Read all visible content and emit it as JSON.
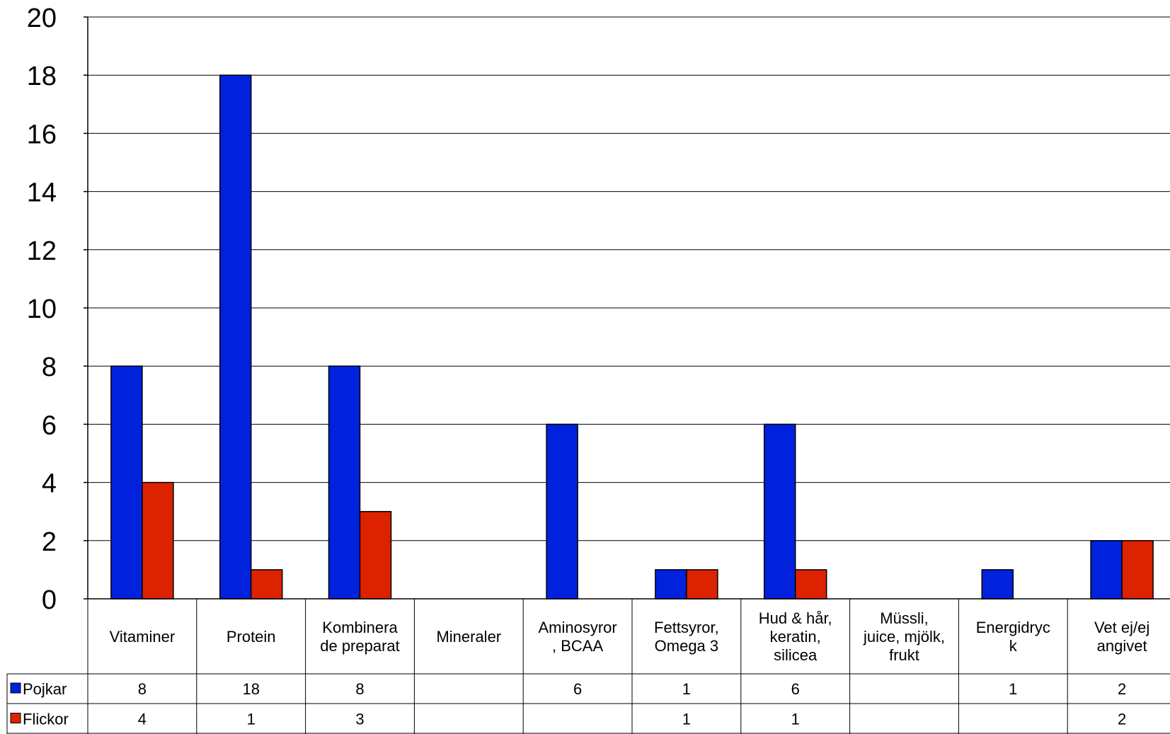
{
  "chart_data": {
    "type": "bar",
    "title": "",
    "xlabel": "",
    "ylabel": "",
    "ylim": [
      0,
      20
    ],
    "yticks": [
      "0",
      "2",
      "4",
      "6",
      "8",
      "10",
      "12",
      "14",
      "16",
      "18",
      "20"
    ],
    "grid": true,
    "legend": "left, in data table rows",
    "categories": [
      [
        "Vitaminer"
      ],
      [
        "Protein"
      ],
      [
        "Kombinera",
        "de preparat"
      ],
      [
        "Mineraler"
      ],
      [
        "Aminosyror",
        ", BCAA"
      ],
      [
        "Fettsyror,",
        "Omega 3"
      ],
      [
        "Hud & hår,",
        "keratin,",
        "silicea"
      ],
      [
        "Müssli,",
        "juice, mjölk,",
        "frukt"
      ],
      [
        "Energidryc",
        "k"
      ],
      [
        "Vet ej/ej",
        "angivet"
      ]
    ],
    "series": [
      {
        "name": "Pojkar",
        "color": "#0022dd",
        "values": [
          8,
          18,
          8,
          null,
          6,
          1,
          6,
          null,
          1,
          2
        ]
      },
      {
        "name": "Flickor",
        "color": "#dd2200",
        "values": [
          4,
          1,
          3,
          null,
          null,
          1,
          1,
          null,
          null,
          2
        ]
      }
    ],
    "table": {
      "rows": [
        [
          "8",
          "18",
          "8",
          "",
          "6",
          "1",
          "6",
          "",
          "1",
          "2"
        ],
        [
          "4",
          "1",
          "3",
          "",
          "",
          "1",
          "1",
          "",
          "",
          "2"
        ]
      ]
    }
  }
}
